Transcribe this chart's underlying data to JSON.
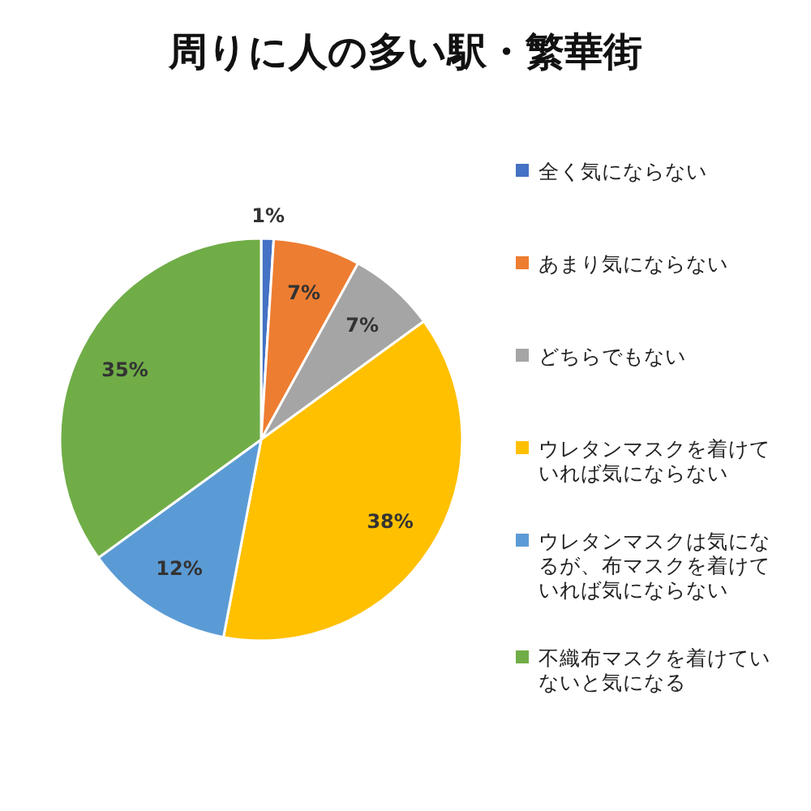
{
  "chart_data": {
    "type": "pie",
    "title": "周りに人の多い駅・繁華街",
    "categories": [
      "全く気にならない",
      "あまり気にならない",
      "どちらでもない",
      "ウレタンマスクを着けていれば気にならない",
      "ウレタンマスクは気になるが、布マスクを着けていれば気にならない",
      "不織布マスクを着けていないと気になる"
    ],
    "values": [
      1,
      7,
      7,
      38,
      12,
      35
    ],
    "colors": [
      "#4472c4",
      "#ed7d31",
      "#a5a5a5",
      "#ffc000",
      "#5b9bd5",
      "#70ad47"
    ],
    "value_labels": [
      "1%",
      "7%",
      "7%",
      "38%",
      "12%",
      "35%"
    ],
    "legend": "right"
  }
}
